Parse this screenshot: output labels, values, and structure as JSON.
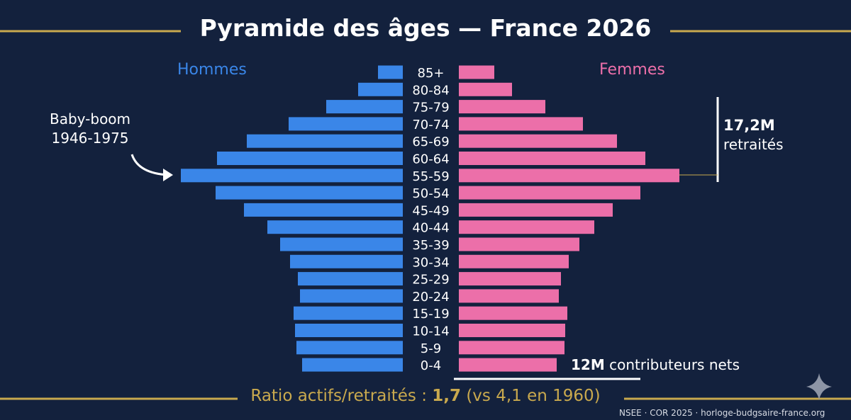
{
  "chart_data": {
    "type": "bar",
    "orientation": "horizontal-pyramid",
    "title": "Pyramide des âges — France 2026",
    "categories": [
      "85+",
      "80-84",
      "75-79",
      "70-74",
      "65-69",
      "60-64",
      "55-59",
      "50-54",
      "45-49",
      "40-44",
      "35-39",
      "30-34",
      "25-29",
      "20-24",
      "15-19",
      "10-14",
      "5-9",
      "0-4"
    ],
    "series": [
      {
        "name": "Hommes",
        "color": "#3a86e8",
        "side": "left",
        "values": [
          35,
          63,
          108,
          161,
          220,
          262,
          313,
          264,
          224,
          191,
          173,
          159,
          148,
          145,
          154,
          152,
          150,
          142
        ]
      },
      {
        "name": "Femmes",
        "color": "#ec6fa9",
        "side": "right",
        "values": [
          50,
          75,
          122,
          175,
          223,
          263,
          311,
          256,
          217,
          191,
          170,
          155,
          144,
          141,
          153,
          150,
          149,
          138
        ]
      }
    ],
    "value_note_scale": "relative",
    "xlim": [
      0,
      320
    ],
    "grid": false,
    "annotations": {
      "baby_boom": [
        "Baby-boom",
        "1946-1975"
      ],
      "retirees_value": "17,2M",
      "retirees_label": "retraités",
      "contributors_value": "12M",
      "contributors_label": "contributeurs nets",
      "ratio_label": "Ratio actifs/retraités : ",
      "ratio_value": "1,7",
      "ratio_compare": " (vs 4,1 en 1960)"
    },
    "source": "NSEE · COR 2025 · horloge-budgsaire-france.org"
  },
  "colors": {
    "background": "#13213d",
    "accent_gold": "#c9a94e"
  }
}
